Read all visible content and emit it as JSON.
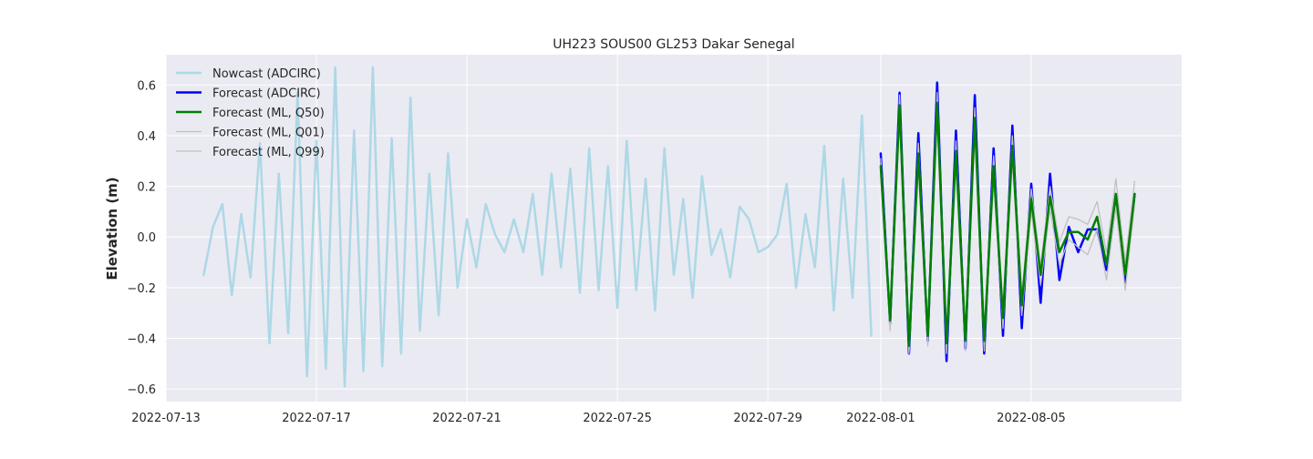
{
  "chart_data": {
    "type": "line",
    "title": "UH223 SOUS00 GL253 Dakar Senegal",
    "xlabel": "",
    "ylabel": "Elevation (m)",
    "x_range": [
      "2022-07-13T00:00",
      "2022-08-09T00:00"
    ],
    "ylim": [
      -0.65,
      0.72
    ],
    "x_ticks": [
      "2022-07-13",
      "2022-07-17",
      "2022-07-21",
      "2022-07-25",
      "2022-07-29",
      "2022-08-01",
      "2022-08-05"
    ],
    "y_ticks": [
      -0.6,
      -0.4,
      -0.2,
      0.0,
      0.2,
      0.4,
      0.6
    ],
    "y_tick_labels": [
      "−0.6",
      "−0.4",
      "−0.2",
      "0.0",
      "0.2",
      "0.4",
      "0.6"
    ],
    "grid": true,
    "legend_position": "top-left",
    "series": [
      {
        "name": "Nowcast (ADCIRC)",
        "color": "#add8e6",
        "x_start": "2022-07-14T00:00",
        "step_hours": 6,
        "values": [
          -0.15,
          0.04,
          0.13,
          -0.23,
          0.09,
          -0.16,
          0.37,
          -0.42,
          0.25,
          -0.38,
          0.57,
          -0.55,
          0.38,
          -0.52,
          0.67,
          -0.59,
          0.42,
          -0.53,
          0.67,
          -0.51,
          0.39,
          -0.46,
          0.55,
          -0.37,
          0.25,
          -0.31,
          0.33,
          -0.2,
          0.07,
          -0.12,
          0.13,
          0.01,
          -0.06,
          0.07,
          -0.06,
          0.17,
          -0.15,
          0.25,
          -0.12,
          0.27,
          -0.22,
          0.35,
          -0.21,
          0.28,
          -0.28,
          0.38,
          -0.21,
          0.23,
          -0.29,
          0.35,
          -0.15,
          0.15,
          -0.24,
          0.24,
          -0.07,
          0.03,
          -0.16,
          0.12,
          0.07,
          -0.06,
          -0.04,
          0.01,
          0.21,
          -0.2,
          0.09,
          -0.12,
          0.36,
          -0.29,
          0.23,
          -0.24,
          0.48,
          -0.39
        ]
      },
      {
        "name": "Forecast (ADCIRC)",
        "color": "#0000ff",
        "x_start": "2022-08-01T00:00",
        "step_hours": 6,
        "values": [
          0.33,
          -0.34,
          0.57,
          -0.46,
          0.41,
          -0.41,
          0.61,
          -0.49,
          0.42,
          -0.44,
          0.56,
          -0.46,
          0.35,
          -0.39,
          0.44,
          -0.36,
          0.21,
          -0.26,
          0.25,
          -0.17,
          0.04,
          -0.06,
          0.03,
          0.03,
          -0.13,
          0.17,
          -0.18,
          0.17
        ]
      },
      {
        "name": "Forecast (ML, Q50)",
        "color": "#008000",
        "x_start": "2022-08-01T00:00",
        "step_hours": 6,
        "values": [
          0.28,
          -0.33,
          0.52,
          -0.43,
          0.33,
          -0.39,
          0.53,
          -0.42,
          0.34,
          -0.41,
          0.47,
          -0.41,
          0.28,
          -0.32,
          0.36,
          -0.27,
          0.15,
          -0.15,
          0.16,
          -0.06,
          0.02,
          0.02,
          -0.01,
          0.08,
          -0.11,
          0.17,
          -0.15,
          0.17
        ]
      },
      {
        "name": "Forecast (ML, Q01)",
        "color": "#c0c0c0",
        "x_start": "2022-08-01T00:00",
        "step_hours": 6,
        "values": [
          0.24,
          -0.37,
          0.47,
          -0.46,
          0.28,
          -0.43,
          0.47,
          -0.46,
          0.28,
          -0.45,
          0.41,
          -0.45,
          0.22,
          -0.36,
          0.3,
          -0.31,
          0.1,
          -0.19,
          0.11,
          -0.11,
          -0.01,
          -0.04,
          -0.07,
          0.03,
          -0.17,
          0.12,
          -0.21,
          0.13
        ]
      },
      {
        "name": "Forecast (ML, Q99)",
        "color": "#c0c0c0",
        "x_start": "2022-08-01T00:00",
        "step_hours": 6,
        "values": [
          0.31,
          -0.29,
          0.56,
          -0.39,
          0.37,
          -0.35,
          0.57,
          -0.38,
          0.38,
          -0.37,
          0.51,
          -0.37,
          0.32,
          -0.28,
          0.4,
          -0.23,
          0.19,
          -0.11,
          0.2,
          -0.02,
          0.08,
          0.07,
          0.05,
          0.14,
          -0.06,
          0.23,
          -0.1,
          0.22
        ]
      }
    ]
  }
}
